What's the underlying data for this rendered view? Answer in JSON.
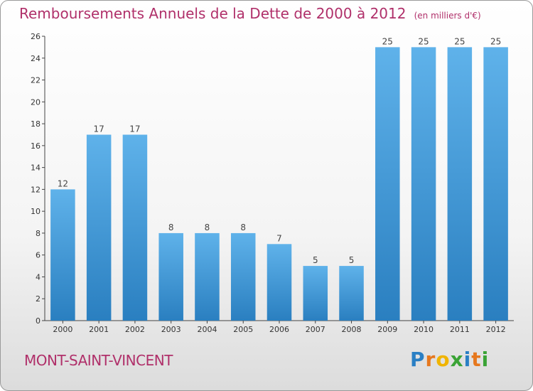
{
  "chart_data": {
    "type": "bar",
    "title": "Remboursements Annuels de la Dette de 2000 à 2012",
    "subtitle": "(en milliers d'€)",
    "xlabel": "",
    "ylabel": "",
    "categories": [
      "2000",
      "2001",
      "2002",
      "2003",
      "2004",
      "2005",
      "2006",
      "2007",
      "2008",
      "2009",
      "2010",
      "2011",
      "2012"
    ],
    "values": [
      12,
      17,
      17,
      8,
      8,
      8,
      7,
      5,
      5,
      25,
      25,
      25,
      25
    ],
    "ylim": [
      0,
      26
    ],
    "yticks": [
      0,
      2,
      4,
      6,
      8,
      10,
      12,
      14,
      16,
      18,
      20,
      22,
      24,
      26
    ],
    "grid": false,
    "bar_color": "#3d95d8"
  },
  "commune": "MONT-SAINT-VINCENT",
  "logo": {
    "letters": [
      "P",
      "r",
      "o",
      "x",
      "i",
      "t",
      "i"
    ],
    "colors": [
      "#2a7fc4",
      "#e6781e",
      "#f0b400",
      "#3aa335",
      "#2a7fc4",
      "#e6781e",
      "#3aa335"
    ]
  }
}
